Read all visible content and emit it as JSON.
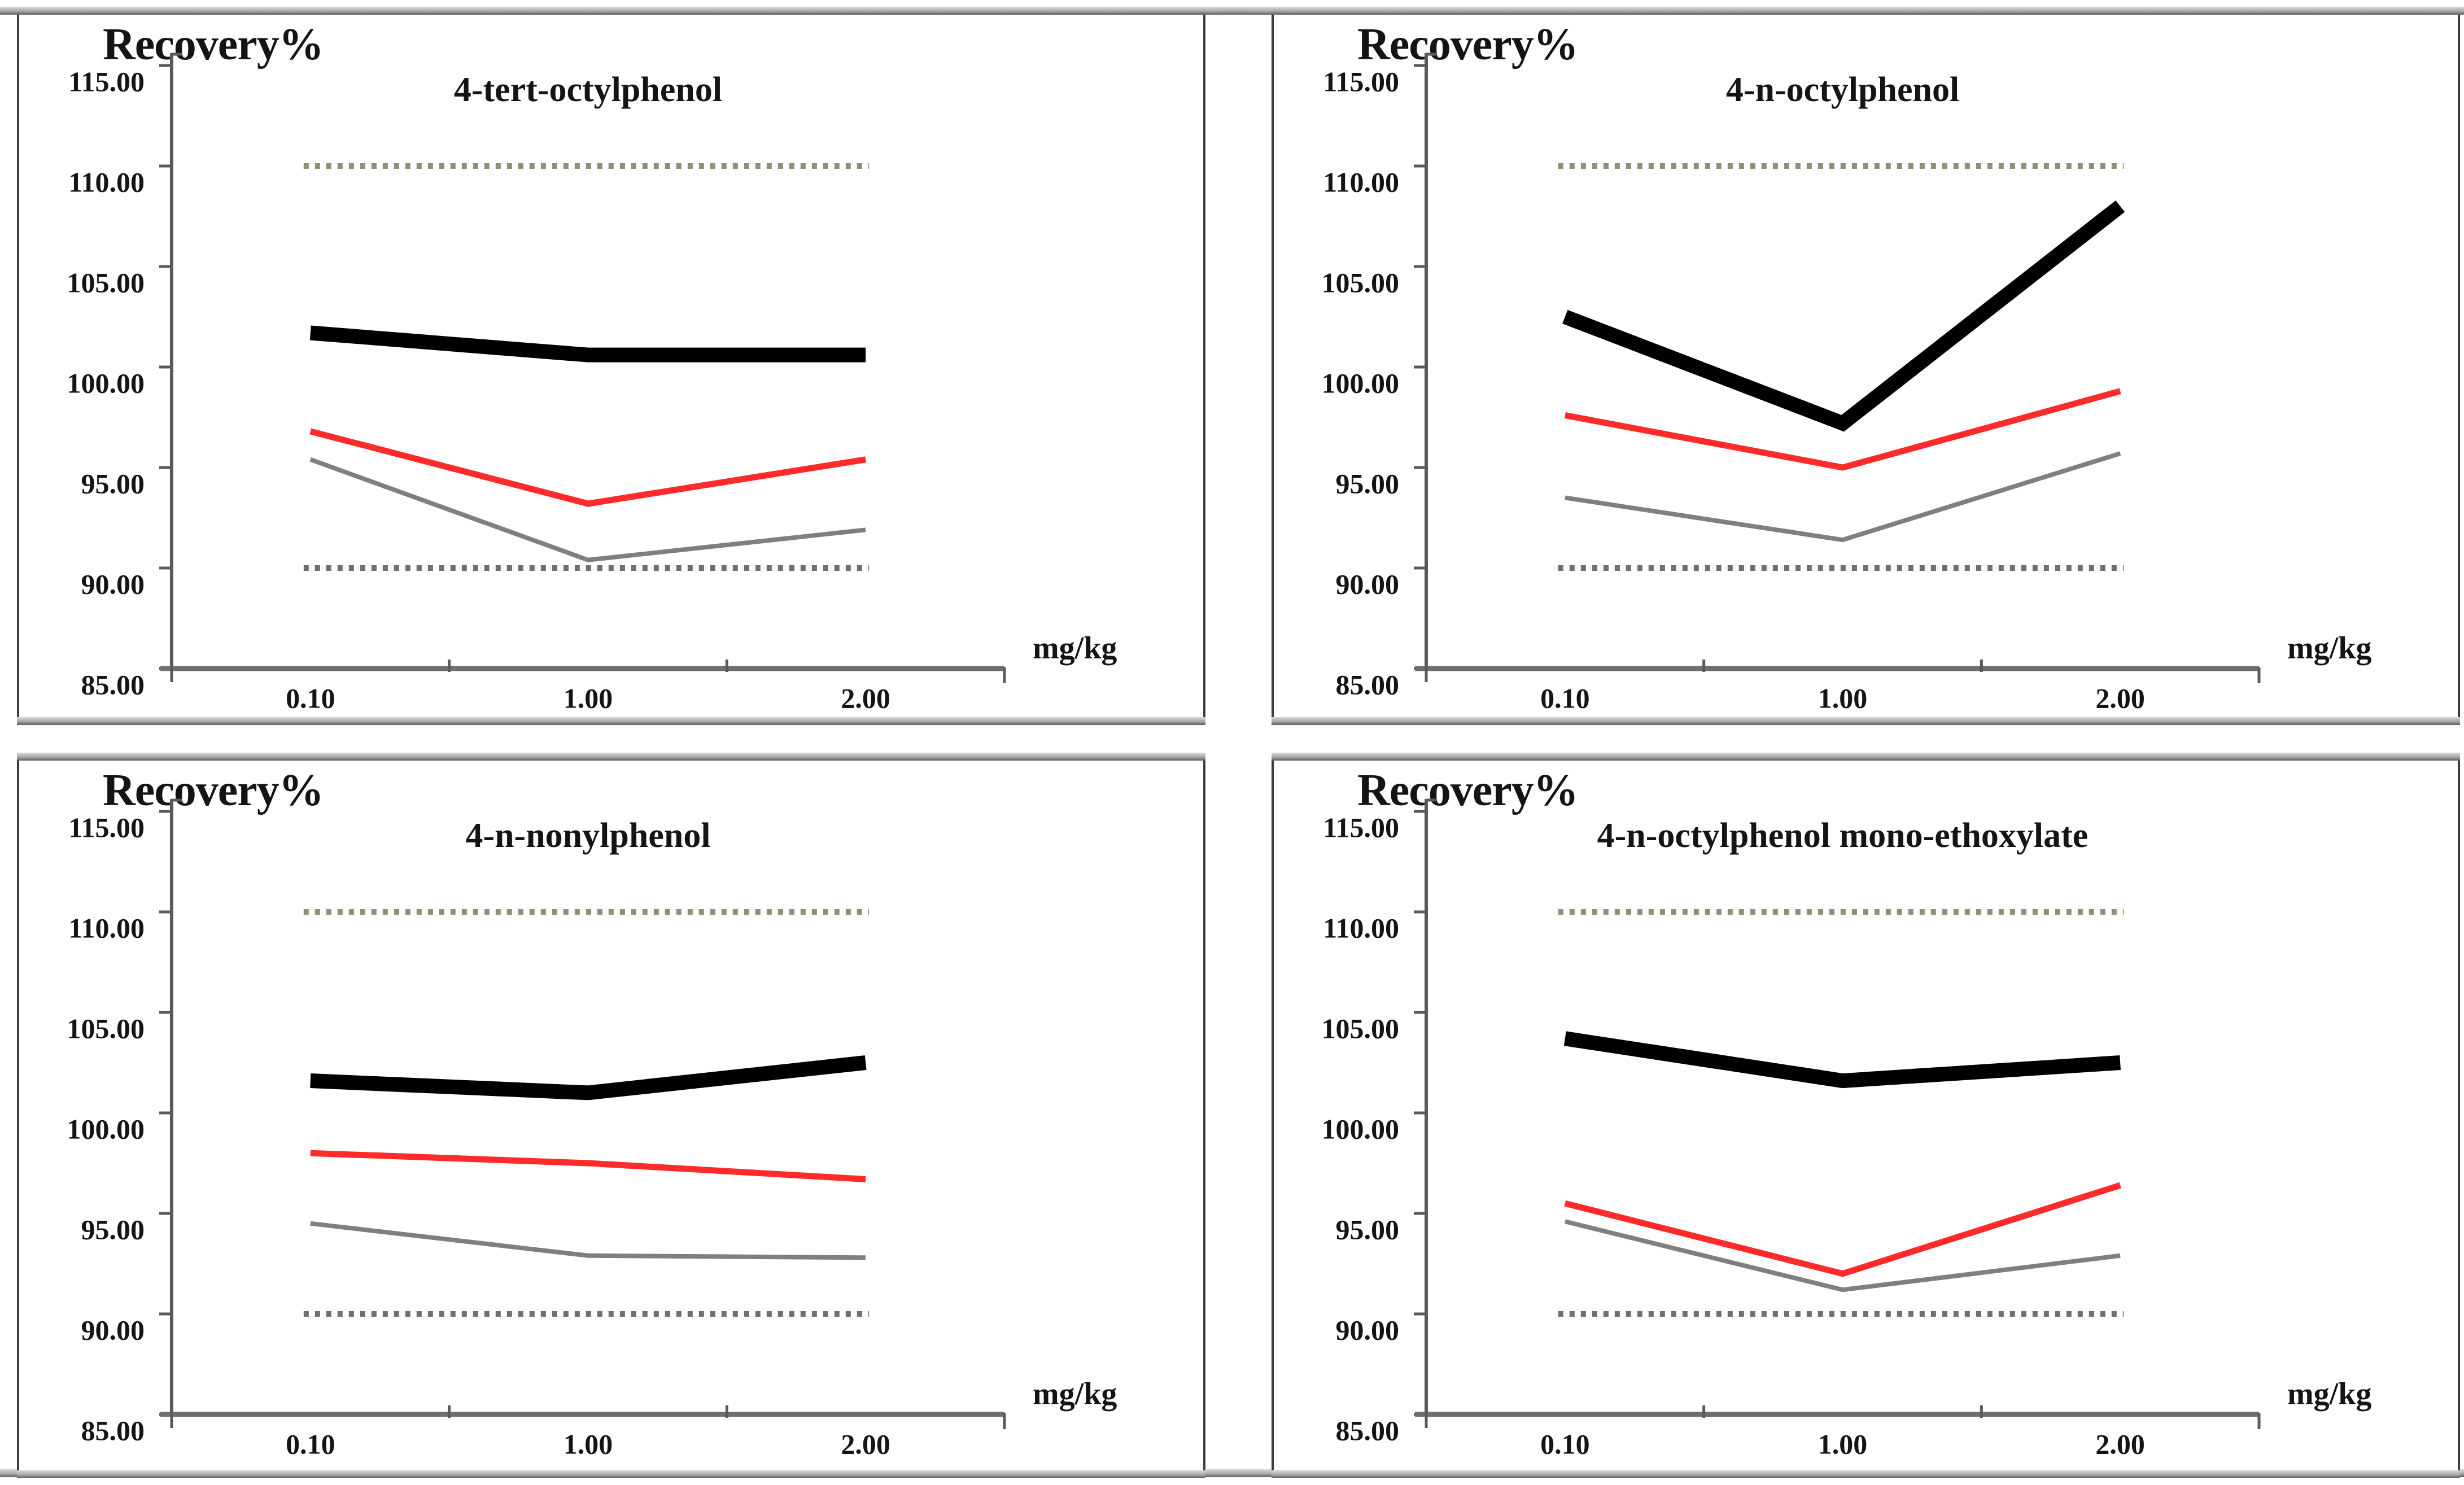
{
  "figure": {
    "y_axis_title": "Recovery%",
    "x_axis_unit": "mg/kg",
    "y_tick_labels": [
      "115.00",
      "110.00",
      "105.00",
      "100.00",
      "95.00",
      "90.00",
      "85.00"
    ],
    "y_tick_values": [
      115,
      110,
      105,
      100,
      95,
      90,
      85
    ],
    "x_tick_labels": [
      "0.10",
      "1.00",
      "2.00"
    ],
    "ylim": [
      85,
      115
    ],
    "series_styles": {
      "black": {
        "color": "#000000",
        "width": 26
      },
      "red": {
        "color": "#ff2b2b",
        "width": 11
      },
      "gray": {
        "color": "#7f7f7f",
        "width": 8
      }
    },
    "limit_lines": {
      "upper": {
        "value": 110,
        "color": "#8f8f73"
      },
      "lower": {
        "value": 90,
        "color": "#6f6f6f"
      }
    }
  },
  "chart_data": [
    {
      "type": "line",
      "title": "4-tert-octylphenol",
      "x_categories": [
        "0.10",
        "1.00",
        "2.00"
      ],
      "x_unit": "mg/kg",
      "ylim": [
        85,
        115
      ],
      "reference_lines": {
        "upper": 110,
        "lower": 90
      },
      "grid": false,
      "legend": "none",
      "series": [
        {
          "name": "black",
          "values": [
            101.7,
            100.6,
            100.6
          ]
        },
        {
          "name": "red",
          "values": [
            96.8,
            93.2,
            95.4
          ]
        },
        {
          "name": "gray",
          "values": [
            95.4,
            90.4,
            91.9
          ]
        }
      ]
    },
    {
      "type": "line",
      "title": "4-n-octylphenol",
      "x_categories": [
        "0.10",
        "1.00",
        "2.00"
      ],
      "x_unit": "mg/kg",
      "ylim": [
        85,
        115
      ],
      "reference_lines": {
        "upper": 110,
        "lower": 90
      },
      "grid": false,
      "legend": "none",
      "series": [
        {
          "name": "black",
          "values": [
            102.5,
            97.2,
            108.0
          ]
        },
        {
          "name": "red",
          "values": [
            97.6,
            95.0,
            98.8
          ]
        },
        {
          "name": "gray",
          "values": [
            93.5,
            91.4,
            95.7
          ]
        }
      ]
    },
    {
      "type": "line",
      "title": "4-n-nonylphenol",
      "x_categories": [
        "0.10",
        "1.00",
        "2.00"
      ],
      "x_unit": "mg/kg",
      "ylim": [
        85,
        115
      ],
      "reference_lines": {
        "upper": 110,
        "lower": 90
      },
      "grid": false,
      "legend": "none",
      "series": [
        {
          "name": "black",
          "values": [
            101.6,
            101.0,
            102.5
          ]
        },
        {
          "name": "red",
          "values": [
            98.0,
            97.5,
            96.7
          ]
        },
        {
          "name": "gray",
          "values": [
            94.5,
            92.9,
            92.8
          ]
        }
      ]
    },
    {
      "type": "line",
      "title": "4-n-octylphenol mono-ethoxylate",
      "x_categories": [
        "0.10",
        "1.00",
        "2.00"
      ],
      "x_unit": "mg/kg",
      "ylim": [
        85,
        115
      ],
      "reference_lines": {
        "upper": 110,
        "lower": 90
      },
      "grid": false,
      "legend": "none",
      "series": [
        {
          "name": "black",
          "values": [
            103.7,
            101.6,
            102.5
          ]
        },
        {
          "name": "red",
          "values": [
            95.5,
            92.0,
            96.4
          ]
        },
        {
          "name": "gray",
          "values": [
            94.6,
            91.2,
            92.9
          ]
        }
      ]
    }
  ]
}
